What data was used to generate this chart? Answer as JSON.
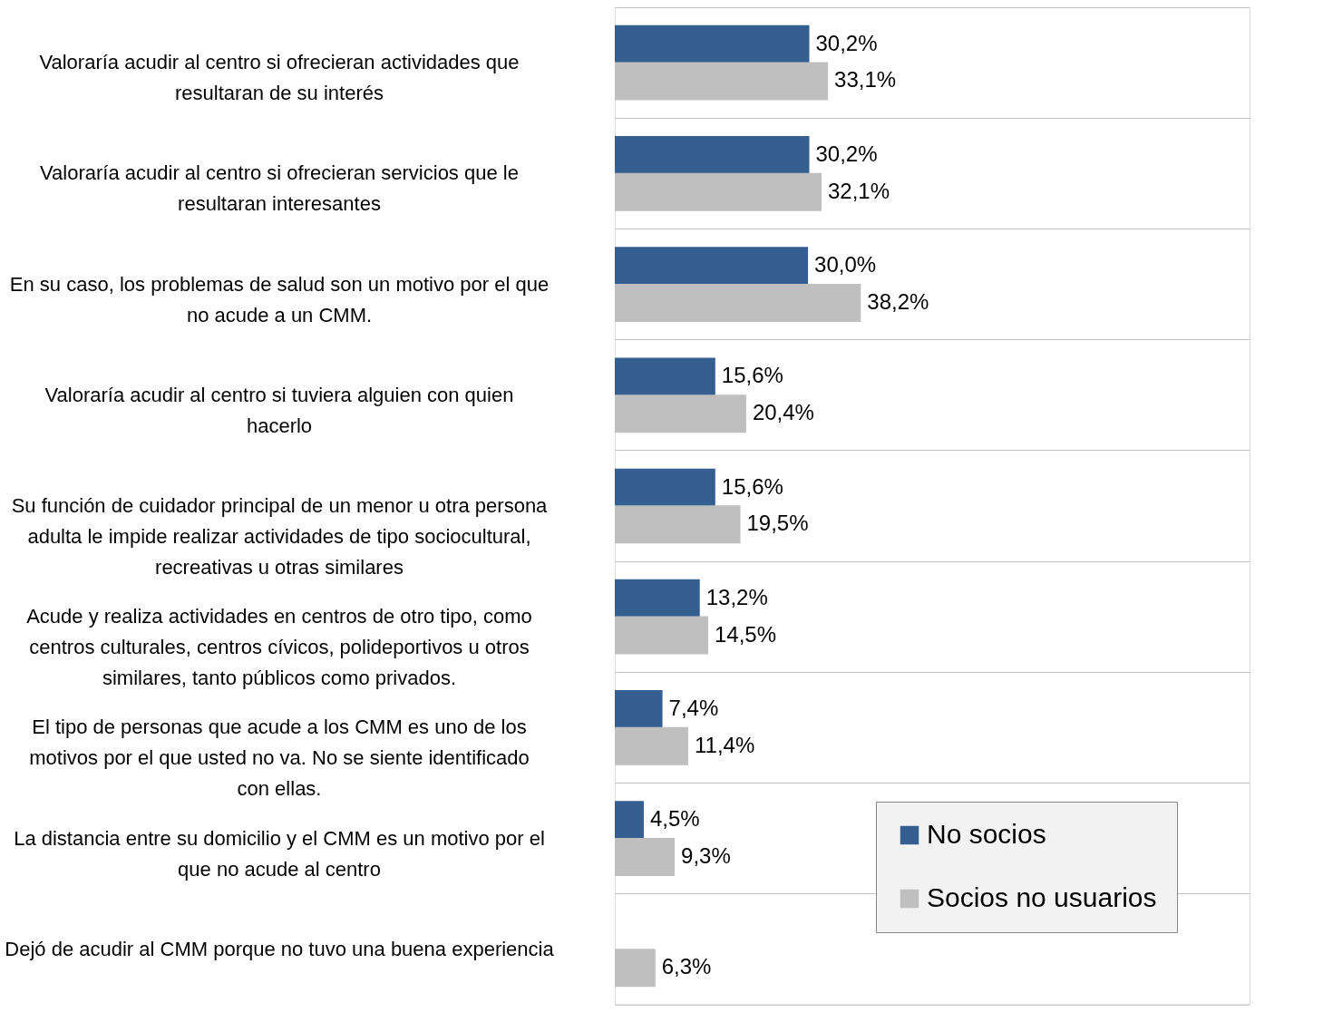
{
  "chart_data": {
    "type": "bar",
    "orientation": "horizontal",
    "grid": "y",
    "legend": "bottom right",
    "categories": [
      "Valoraría acudir al centro si ofrecieran actividades que resultaran de su interés",
      "Valoraría acudir al centro si ofrecieran servicios que le resultaran interesantes",
      "En su caso, los problemas de salud son un motivo por el que no acude a un CMM.",
      "Valoraría acudir al centro si tuviera alguien con quien hacerlo",
      "Su función de cuidador principal de un menor u otra persona adulta le impide realizar actividades de tipo sociocultural, recreativas u otras similares",
      "Acude y realiza actividades en centros de otro tipo, como centros culturales, centros cívicos, polideportivos u otros similares, tanto públicos como privados.",
      "El tipo de personas que acude a los CMM es uno de los motivos por el que usted no va. No se siente identificado con ellas.",
      "La distancia entre su domicilio y el CMM es un motivo por el que no acude al centro",
      "Dejó de acudir al CMM porque no tuvo una buena experiencia"
    ],
    "series": [
      {
        "name": "No socios",
        "color": "#355f91",
        "values": [
          30.2,
          30.2,
          30.0,
          15.6,
          15.6,
          13.2,
          7.4,
          4.5,
          null
        ],
        "value_labels": [
          "30,2%",
          "30,2%",
          "30,0%",
          "15,6%",
          "15,6%",
          "13,2%",
          "7,4%",
          "4,5%",
          null
        ]
      },
      {
        "name": "Socios no usuarios",
        "color": "#bfbfbf",
        "values": [
          33.1,
          32.1,
          38.2,
          20.4,
          19.5,
          14.5,
          11.4,
          9.3,
          6.3
        ],
        "value_labels": [
          "33,1%",
          "32,1%",
          "38,2%",
          "20,4%",
          "19,5%",
          "14,5%",
          "11,4%",
          "9,3%",
          "6,3%"
        ]
      }
    ]
  }
}
